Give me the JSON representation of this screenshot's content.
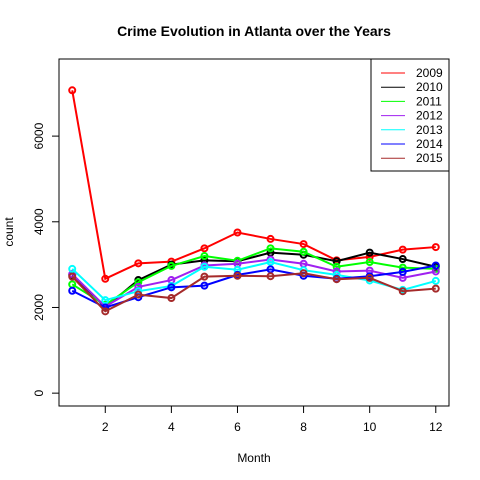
{
  "chart_data": {
    "type": "line",
    "title": "Crime Evolution in Atlanta over the Years",
    "xlabel": "Month",
    "ylabel": "count",
    "x": [
      1,
      2,
      3,
      4,
      5,
      6,
      7,
      8,
      9,
      10,
      11,
      12
    ],
    "xlim": [
      0.6,
      12.4
    ],
    "ylim": [
      -300,
      7800
    ],
    "x_ticks": [
      2,
      4,
      6,
      8,
      10,
      12
    ],
    "y_ticks": [
      0,
      2000,
      4000,
      6000
    ],
    "legend_position": "top-right",
    "grid": false,
    "series": [
      {
        "name": "2009",
        "color": "#ff0000",
        "values": [
          7070,
          2670,
          3030,
          3070,
          3380,
          3750,
          3600,
          3480,
          3100,
          3180,
          3350,
          3410
        ]
      },
      {
        "name": "2010",
        "color": "#000000",
        "values": [
          2760,
          2010,
          2640,
          3000,
          3100,
          3080,
          3280,
          3230,
          3080,
          3280,
          3130,
          2950
        ]
      },
      {
        "name": "2011",
        "color": "#00ff00",
        "values": [
          2540,
          2060,
          2590,
          2970,
          3200,
          3090,
          3380,
          3300,
          2950,
          3060,
          2930,
          2900
        ]
      },
      {
        "name": "2012",
        "color": "#a020f0",
        "values": [
          2780,
          2020,
          2480,
          2640,
          2980,
          3020,
          3120,
          3020,
          2840,
          2860,
          2690,
          2840
        ]
      },
      {
        "name": "2013",
        "color": "#00ffff",
        "values": [
          2900,
          2170,
          2380,
          2500,
          2950,
          2880,
          3060,
          2870,
          2760,
          2630,
          2410,
          2620
        ]
      },
      {
        "name": "2014",
        "color": "#0000ff",
        "values": [
          2390,
          2000,
          2240,
          2470,
          2510,
          2760,
          2890,
          2740,
          2670,
          2730,
          2830,
          2980
        ]
      },
      {
        "name": "2015",
        "color": "#a52a2a",
        "values": [
          2720,
          1910,
          2300,
          2220,
          2720,
          2740,
          2730,
          2800,
          2660,
          2690,
          2380,
          2440
        ]
      }
    ]
  }
}
